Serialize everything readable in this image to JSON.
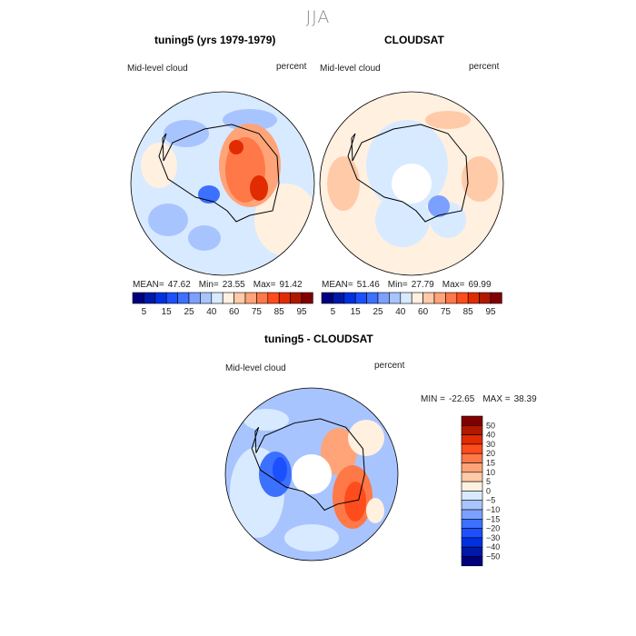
{
  "title": "JJA",
  "panels": [
    {
      "title": "tuning5 (yrs 1979-1979)",
      "variable": "Mid-level cloud",
      "units": "percent",
      "stats": {
        "mean_label": "MEAN=",
        "mean": "47.62",
        "min_label": "Min=",
        "min": "23.55",
        "max_label": "Max=",
        "max": "91.42"
      }
    },
    {
      "title": "CLOUDSAT",
      "variable": "Mid-level cloud",
      "units": "percent",
      "stats": {
        "mean_label": "MEAN=",
        "mean": "51.46",
        "min_label": "Min=",
        "min": "27.79",
        "max_label": "Max=",
        "max": "69.99"
      }
    },
    {
      "title": "tuning5 - CLOUDSAT",
      "variable": "Mid-level cloud",
      "units": "percent",
      "stats": {
        "min_label": "MIN =",
        "min": "-22.65",
        "max_label": "MAX =",
        "max": "38.39"
      }
    }
  ],
  "chart_data": [
    {
      "type": "heatmap",
      "projection": "south-polar-stereographic",
      "title": "tuning5 (yrs 1979-1979)",
      "levels": [
        5,
        10,
        15,
        20,
        25,
        30,
        40,
        50,
        60,
        70,
        75,
        80,
        85,
        90,
        95
      ],
      "tick_labels": [
        "5",
        "15",
        "25",
        "40",
        "60",
        "75",
        "85",
        "95"
      ],
      "mean": 47.62,
      "min": 23.55,
      "max": 91.42
    },
    {
      "type": "heatmap",
      "projection": "south-polar-stereographic",
      "title": "CLOUDSAT",
      "levels": [
        5,
        10,
        15,
        20,
        25,
        30,
        40,
        50,
        60,
        70,
        75,
        80,
        85,
        90,
        95
      ],
      "tick_labels": [
        "5",
        "15",
        "25",
        "40",
        "60",
        "75",
        "85",
        "95"
      ],
      "mean": 51.46,
      "min": 27.79,
      "max": 69.99
    },
    {
      "type": "heatmap",
      "projection": "south-polar-stereographic",
      "title": "tuning5 - CLOUDSAT",
      "levels": [
        -50,
        -40,
        -30,
        -20,
        -15,
        -10,
        -5,
        0,
        5,
        10,
        15,
        20,
        30,
        40,
        50
      ],
      "tick_labels": [
        "-50",
        "-40",
        "-30",
        "-20",
        "-15",
        "-10",
        "-5",
        "0",
        "5",
        "10",
        "15",
        "20",
        "30",
        "40",
        "50"
      ],
      "min": -22.65,
      "max": 38.39
    }
  ],
  "colors": [
    "#00007f",
    "#0018a8",
    "#0030e0",
    "#1c50ff",
    "#3c70ff",
    "#7ca0ff",
    "#a8c4ff",
    "#d8eaff",
    "#fff0e0",
    "#ffcaa8",
    "#ffa478",
    "#ff7848",
    "#ff4c1c",
    "#e02c00",
    "#b01800",
    "#800000"
  ]
}
